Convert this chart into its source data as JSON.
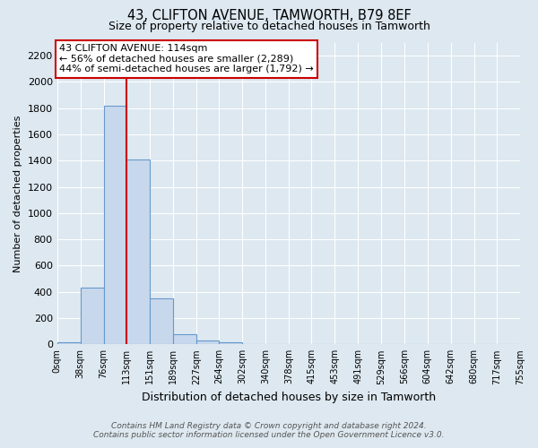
{
  "title": "43, CLIFTON AVENUE, TAMWORTH, B79 8EF",
  "subtitle": "Size of property relative to detached houses in Tamworth",
  "xlabel": "Distribution of detached houses by size in Tamworth",
  "ylabel": "Number of detached properties",
  "bar_edges": [
    0,
    38,
    76,
    113,
    151,
    189,
    227,
    264,
    302,
    340,
    378,
    415,
    453,
    491,
    529,
    566,
    604,
    642,
    680,
    717,
    755
  ],
  "bar_heights": [
    15,
    430,
    1820,
    1410,
    350,
    80,
    30,
    15,
    5,
    0,
    0,
    0,
    0,
    0,
    0,
    0,
    0,
    0,
    0,
    0
  ],
  "bar_color": "#c8d8ec",
  "bar_edge_color": "#6699cc",
  "property_line_x": 113,
  "property_line_color": "#cc0000",
  "ylim": [
    0,
    2300
  ],
  "yticks": [
    0,
    200,
    400,
    600,
    800,
    1000,
    1200,
    1400,
    1600,
    1800,
    2000,
    2200
  ],
  "annotation_title": "43 CLIFTON AVENUE: 114sqm",
  "annotation_line1": "← 56% of detached houses are smaller (2,289)",
  "annotation_line2": "44% of semi-detached houses are larger (1,792) →",
  "annotation_box_color": "#cc0000",
  "background_color": "#dde8f0",
  "plot_bg_color": "#dde8f0",
  "grid_color": "#ffffff",
  "footer_line1": "Contains HM Land Registry data © Crown copyright and database right 2024.",
  "footer_line2": "Contains public sector information licensed under the Open Government Licence v3.0.",
  "xtick_labels": [
    "0sqm",
    "38sqm",
    "76sqm",
    "113sqm",
    "151sqm",
    "189sqm",
    "227sqm",
    "264sqm",
    "302sqm",
    "340sqm",
    "378sqm",
    "415sqm",
    "453sqm",
    "491sqm",
    "529sqm",
    "566sqm",
    "604sqm",
    "642sqm",
    "680sqm",
    "717sqm",
    "755sqm"
  ]
}
